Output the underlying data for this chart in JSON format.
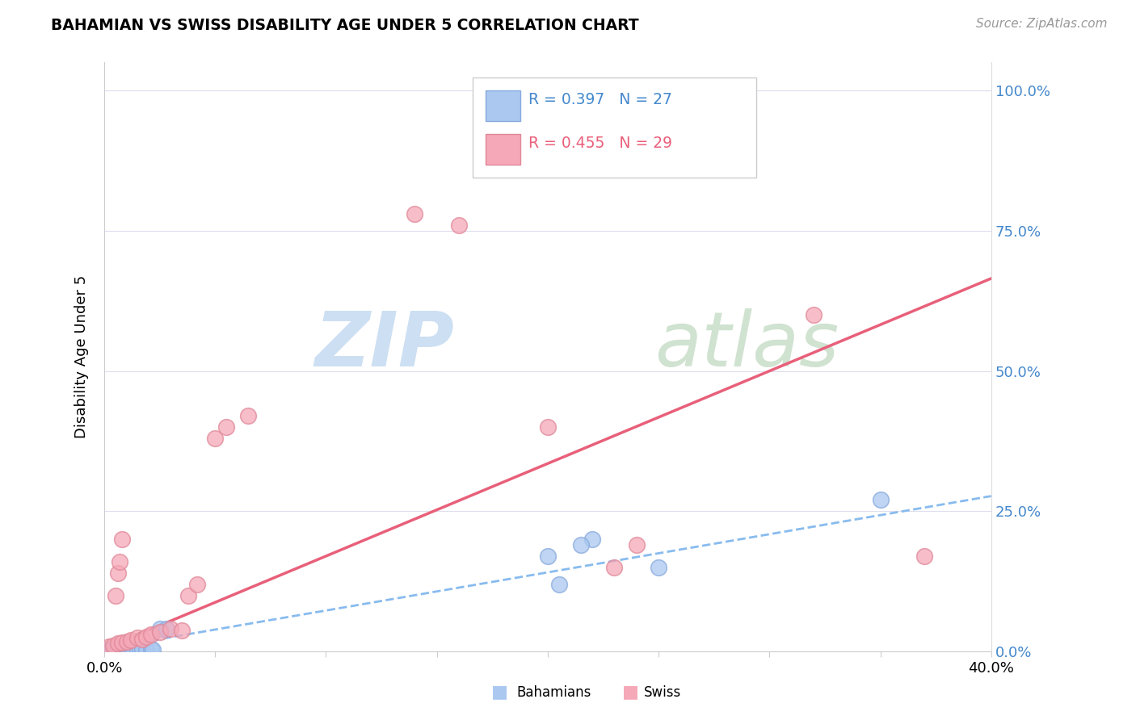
{
  "title": "BAHAMIAN VS SWISS DISABILITY AGE UNDER 5 CORRELATION CHART",
  "source": "Source: ZipAtlas.com",
  "ylabel": "Disability Age Under 5",
  "xmin": 0.0,
  "xmax": 0.4,
  "ymin": 0.0,
  "ymax": 1.05,
  "ytick_vals": [
    0.0,
    0.25,
    0.5,
    0.75,
    1.0
  ],
  "ytick_labels": [
    "0.0%",
    "25.0%",
    "50.0%",
    "75.0%",
    "100.0%"
  ],
  "xtick_vals": [
    0.0,
    0.05,
    0.1,
    0.15,
    0.2,
    0.25,
    0.3,
    0.35,
    0.4
  ],
  "xtick_labels": [
    "0.0%",
    "",
    "",
    "",
    "",
    "",
    "",
    "",
    "40.0%"
  ],
  "bahamians_R": 0.397,
  "bahamians_N": 27,
  "swiss_R": 0.455,
  "swiss_N": 29,
  "bahamian_color": "#aac8f0",
  "bahamian_edge": "#88aadd",
  "swiss_color": "#f5a8b8",
  "swiss_edge": "#e08898",
  "bahamian_line_color": "#88bbee",
  "swiss_line_color": "#e8607a",
  "right_tick_color": "#4488cc",
  "watermark_zip_color": "#c8dff0",
  "watermark_atlas_color": "#d8e8d8",
  "legend_text_blue": "#4488cc",
  "legend_text_pink": "#e8607a",
  "bahamians_x": [
    0.001,
    0.002,
    0.003,
    0.004,
    0.005,
    0.006,
    0.007,
    0.008,
    0.009,
    0.01,
    0.011,
    0.012,
    0.013,
    0.015,
    0.016,
    0.017,
    0.019,
    0.021,
    0.022,
    0.025,
    0.028,
    0.2,
    0.22,
    0.25,
    0.205,
    0.215,
    0.35
  ],
  "bahamians_y": [
    0.003,
    0.004,
    0.003,
    0.005,
    0.004,
    0.003,
    0.005,
    0.004,
    0.003,
    0.005,
    0.004,
    0.005,
    0.004,
    0.003,
    0.005,
    0.004,
    0.003,
    0.004,
    0.003,
    0.04,
    0.04,
    0.17,
    0.2,
    0.15,
    0.12,
    0.19,
    0.27
  ],
  "swiss_x": [
    0.002,
    0.004,
    0.006,
    0.008,
    0.01,
    0.012,
    0.015,
    0.017,
    0.019,
    0.021,
    0.025,
    0.03,
    0.035,
    0.038,
    0.042,
    0.05,
    0.055,
    0.065,
    0.14,
    0.16,
    0.2,
    0.23,
    0.24,
    0.32,
    0.37,
    0.005,
    0.006,
    0.007,
    0.008
  ],
  "swiss_y": [
    0.008,
    0.01,
    0.014,
    0.016,
    0.018,
    0.02,
    0.025,
    0.022,
    0.026,
    0.03,
    0.035,
    0.04,
    0.038,
    0.1,
    0.12,
    0.38,
    0.4,
    0.42,
    0.78,
    0.76,
    0.4,
    0.15,
    0.19,
    0.6,
    0.17,
    0.1,
    0.14,
    0.16,
    0.2
  ],
  "swiss_line_slope": 1.65,
  "swiss_line_intercept": 0.005,
  "bah_line_slope": 0.68,
  "bah_line_intercept": 0.005
}
